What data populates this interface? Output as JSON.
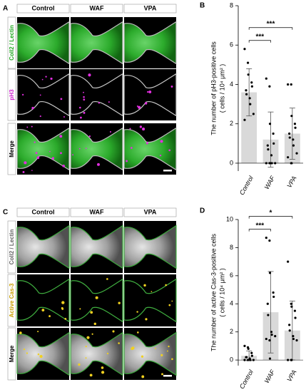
{
  "figure": {
    "panels": [
      {
        "letter": "A",
        "columns": [
          "Control",
          "WAF",
          "VPA"
        ],
        "rows": [
          "Coll2 / Lectin",
          "pH3",
          "Merge"
        ]
      },
      {
        "letter": "C",
        "columns": [
          "Control",
          "WAF",
          "VPA"
        ],
        "rows": [
          "Coll2 / Lectin",
          "Active Cas-3",
          "Merge"
        ]
      }
    ]
  },
  "chart_data": [
    {
      "type": "bar",
      "panel_letter": "B",
      "ylabel": [
        "The number of pH3-positive cells",
        "( cells / 10⁴ μm² )"
      ],
      "categories": [
        "Control",
        "WAF",
        "VPA"
      ],
      "values": [
        3.6,
        1.2,
        1.5
      ],
      "errors": [
        1.2,
        1.4,
        1.3
      ],
      "points": [
        [
          5.8,
          5.1,
          4.5,
          4.1,
          3.9,
          3.7,
          3.5,
          3.3,
          3.0,
          2.5,
          2.2
        ],
        [
          4.3,
          3.9,
          2.0,
          1.5,
          1.0,
          0.9,
          0.7,
          0.4,
          0,
          0,
          0,
          0,
          0
        ],
        [
          4.0,
          4.0,
          2.4,
          2.0,
          1.8,
          1.5,
          1.3,
          1.2,
          0.9,
          0.5,
          0.3,
          0,
          0
        ]
      ],
      "color": "#d9d9d9",
      "ylim": [
        -0.4,
        8
      ],
      "yticks": [
        0,
        2,
        4,
        6,
        8
      ],
      "significance": [
        {
          "groups": [
            "Control",
            "WAF"
          ],
          "label": "***"
        },
        {
          "groups": [
            "Control",
            "VPA"
          ],
          "label": "***"
        }
      ]
    },
    {
      "type": "bar",
      "panel_letter": "D",
      "ylabel": [
        "The number of active Cas-3-positive cells",
        "( cells / 10⁴ μm² )"
      ],
      "categories": [
        "Control",
        "WAF",
        "VPA"
      ],
      "values": [
        0.3,
        3.4,
        2.1
      ],
      "errors": [
        0.35,
        2.9,
        2.1
      ],
      "points": [
        [
          1.0,
          0.9,
          0.8,
          0.5,
          0.3,
          0.2,
          0.2,
          0.1,
          0,
          0,
          0,
          0
        ],
        [
          8.7,
          8.5,
          6.2,
          4.8,
          4.5,
          4.0,
          3.2,
          2.0,
          1.8,
          1.7,
          1.5,
          1.4,
          0.1
        ],
        [
          7.0,
          4.0,
          3.8,
          3.5,
          3.0,
          2.5,
          2.1,
          1.7,
          1.5,
          1.4,
          0,
          0,
          0
        ]
      ],
      "color": "#d9d9d9",
      "ylim": [
        -0.4,
        10
      ],
      "yticks": [
        0,
        2,
        4,
        6,
        8,
        10
      ],
      "significance": [
        {
          "groups": [
            "Control",
            "WAF"
          ],
          "label": "***"
        },
        {
          "groups": [
            "Control",
            "VPA"
          ],
          "label": "*"
        }
      ]
    }
  ]
}
